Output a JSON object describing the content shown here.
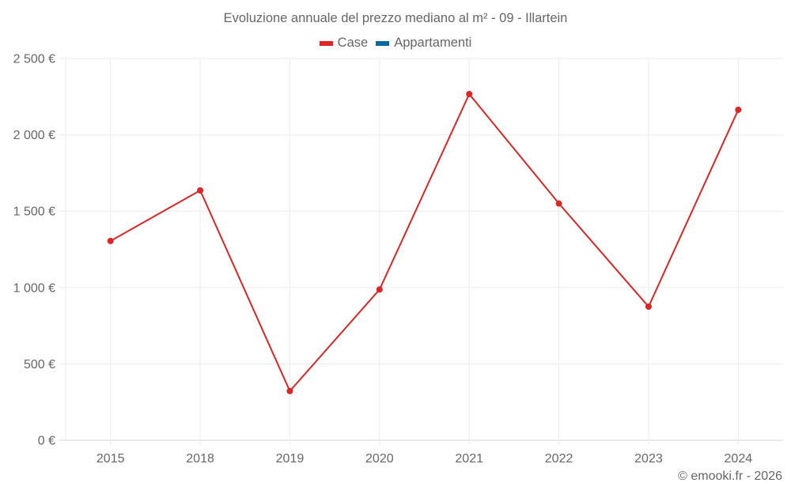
{
  "title": "Evoluzione annuale del prezzo mediano al m² - 09 - Illartein",
  "legend": [
    {
      "label": "Case",
      "color": "#dc2626"
    },
    {
      "label": "Appartamenti",
      "color": "#0369a1"
    }
  ],
  "credit": "© emooki.fr - 2026",
  "chart_data": {
    "type": "line",
    "title": "Evoluzione annuale del prezzo mediano al m² - 09 - Illartein",
    "xlabel": "",
    "ylabel": "",
    "categories": [
      "2015",
      "2018",
      "2019",
      "2020",
      "2021",
      "2022",
      "2023",
      "2024"
    ],
    "series": [
      {
        "name": "Case",
        "color": "#dc2626",
        "values": [
          1305,
          1636,
          322,
          987,
          2267,
          1550,
          875,
          2164
        ]
      },
      {
        "name": "Appartamenti",
        "color": "#0369a1",
        "values": []
      }
    ],
    "ylim": [
      0,
      2500
    ],
    "yticks": [
      0,
      500,
      1000,
      1500,
      2000,
      2500
    ],
    "ytick_labels": [
      "0 €",
      "500 €",
      "1 000 €",
      "1 500 €",
      "2 000 €",
      "2 500 €"
    ],
    "grid": true,
    "legend_position": "top"
  }
}
